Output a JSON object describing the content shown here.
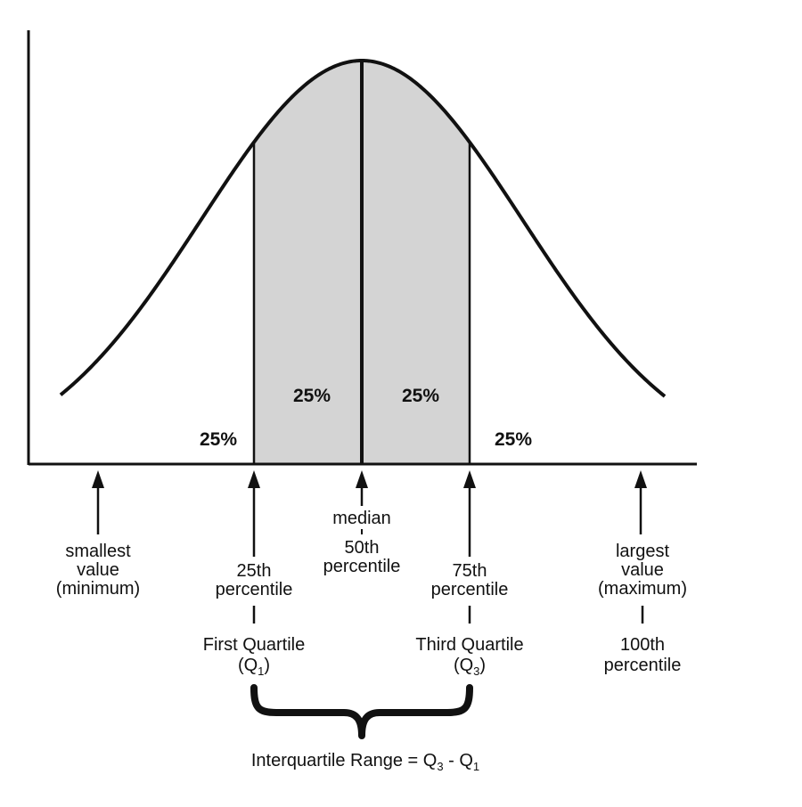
{
  "colors": {
    "ink": "#111111",
    "shade": "#d4d4d4",
    "background": "#ffffff"
  },
  "regions": {
    "tail_left": "25%",
    "inner_left": "25%",
    "inner_right": "25%",
    "tail_right": "25%"
  },
  "markers": {
    "minimum": {
      "lines": [
        "smallest",
        "value",
        "(minimum)"
      ]
    },
    "q1": {
      "lines": [
        "25th",
        "percentile"
      ],
      "name": "First Quartile",
      "symbol_open": "(Q",
      "symbol_sub": "1",
      "symbol_close": ")"
    },
    "median": {
      "top": "median",
      "lines": [
        "50th",
        "percentile"
      ]
    },
    "q3": {
      "lines": [
        "75th",
        "percentile"
      ],
      "name": "Third Quartile",
      "symbol_open": "(Q",
      "symbol_sub": "3",
      "symbol_close": ")"
    },
    "maximum": {
      "lines": [
        "largest",
        "value",
        "(maximum)"
      ],
      "extra": [
        "100th",
        "percentile"
      ]
    }
  },
  "iqr": {
    "prefix": "Interquartile Range = Q",
    "sub3": "3",
    "mid": " - Q",
    "sub1": "1"
  }
}
